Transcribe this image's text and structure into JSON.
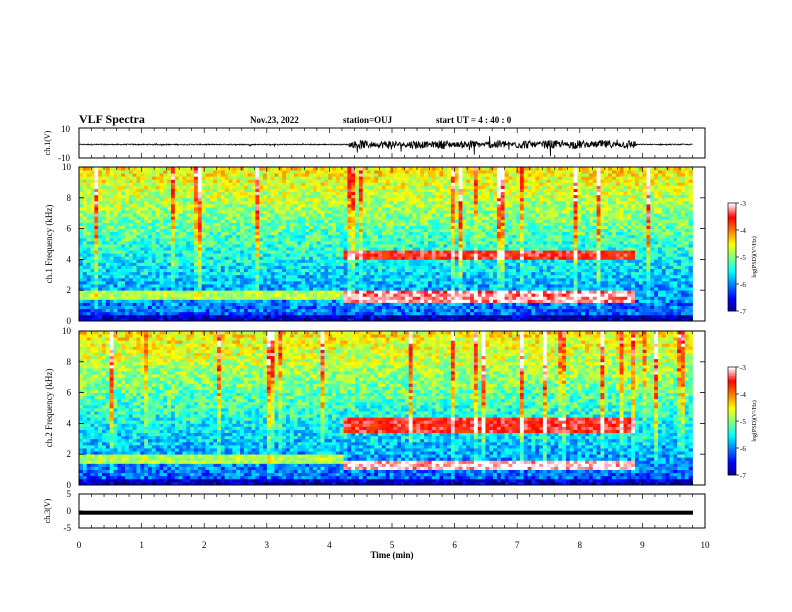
{
  "header": {
    "title": "VLF Spectra",
    "date": "Nov.23, 2022",
    "station": "station=OUJ",
    "start": "start UT = 4 : 40 : 0"
  },
  "chart_data": [
    {
      "type": "line",
      "panel": "ch1-waveform",
      "ylabel": "ch.1(V)",
      "ylim": [
        -10,
        10
      ],
      "yticks": [
        "10",
        "-10"
      ],
      "xlim": [
        0,
        10
      ],
      "summary": "waveform amplitude small before ~4 min, larger bursts between ~4.5 and ~9 min"
    },
    {
      "type": "heatmap",
      "panel": "ch1-spectrogram",
      "ylabel": "ch.1 Frequency (kHz)",
      "ylim": [
        0,
        10
      ],
      "yticks": [
        "0",
        "2",
        "4",
        "6",
        "8",
        "10"
      ],
      "xlim": [
        0,
        10
      ],
      "colorbar": {
        "label": "log(PSD)(V²/Hz)",
        "range": [
          -7,
          -3
        ],
        "ticks": [
          "-3",
          "-4",
          "-5",
          "-6",
          "-7"
        ]
      },
      "features": [
        {
          "band_khz": [
            4.0,
            4.6
          ],
          "time_min": [
            4.2,
            8.9
          ],
          "level": -3.5
        },
        {
          "band_khz": [
            1.2,
            2.0
          ],
          "time_min": [
            4.2,
            8.9
          ],
          "level": -3.2
        },
        {
          "band_khz": [
            1.5,
            2.0
          ],
          "time_min": [
            0,
            4.2
          ],
          "level": -4.8
        }
      ]
    },
    {
      "type": "heatmap",
      "panel": "ch2-spectrogram",
      "ylabel": "ch.2 Frequency (kHz)",
      "ylim": [
        0,
        10
      ],
      "yticks": [
        "0",
        "2",
        "4",
        "6",
        "8",
        "10"
      ],
      "xlim": [
        0,
        10
      ],
      "colorbar": {
        "label": "log(PSD)(V²/Hz)",
        "range": [
          -7,
          -3
        ],
        "ticks": [
          "-3",
          "-4",
          "-5",
          "-6",
          "-7"
        ]
      },
      "features": [
        {
          "band_khz": [
            3.5,
            4.3
          ],
          "time_min": [
            4.2,
            8.9
          ],
          "level": -3.5
        },
        {
          "band_khz": [
            1.0,
            1.6
          ],
          "time_min": [
            4.2,
            8.9
          ],
          "level": -3.1
        },
        {
          "band_khz": [
            1.5,
            2.0
          ],
          "time_min": [
            0,
            4.2
          ],
          "level": -4.8
        }
      ]
    },
    {
      "type": "line",
      "panel": "ch3-waveform",
      "ylabel": "ch.3(V)",
      "ylim": [
        -5,
        5
      ],
      "yticks": [
        "5",
        "0",
        "-5"
      ],
      "xlim": [
        0,
        10
      ],
      "values_constant": -0.5
    }
  ],
  "x_axis": {
    "label": "Time (min)",
    "ticks": [
      "0",
      "1",
      "2",
      "3",
      "4",
      "5",
      "6",
      "7",
      "8",
      "9",
      "10"
    ]
  },
  "colors": {
    "colormap": [
      "#00008f",
      "#0000ff",
      "#0080ff",
      "#00ffff",
      "#80ff80",
      "#ffff00",
      "#ff8000",
      "#ff0000",
      "#ffffff"
    ]
  }
}
